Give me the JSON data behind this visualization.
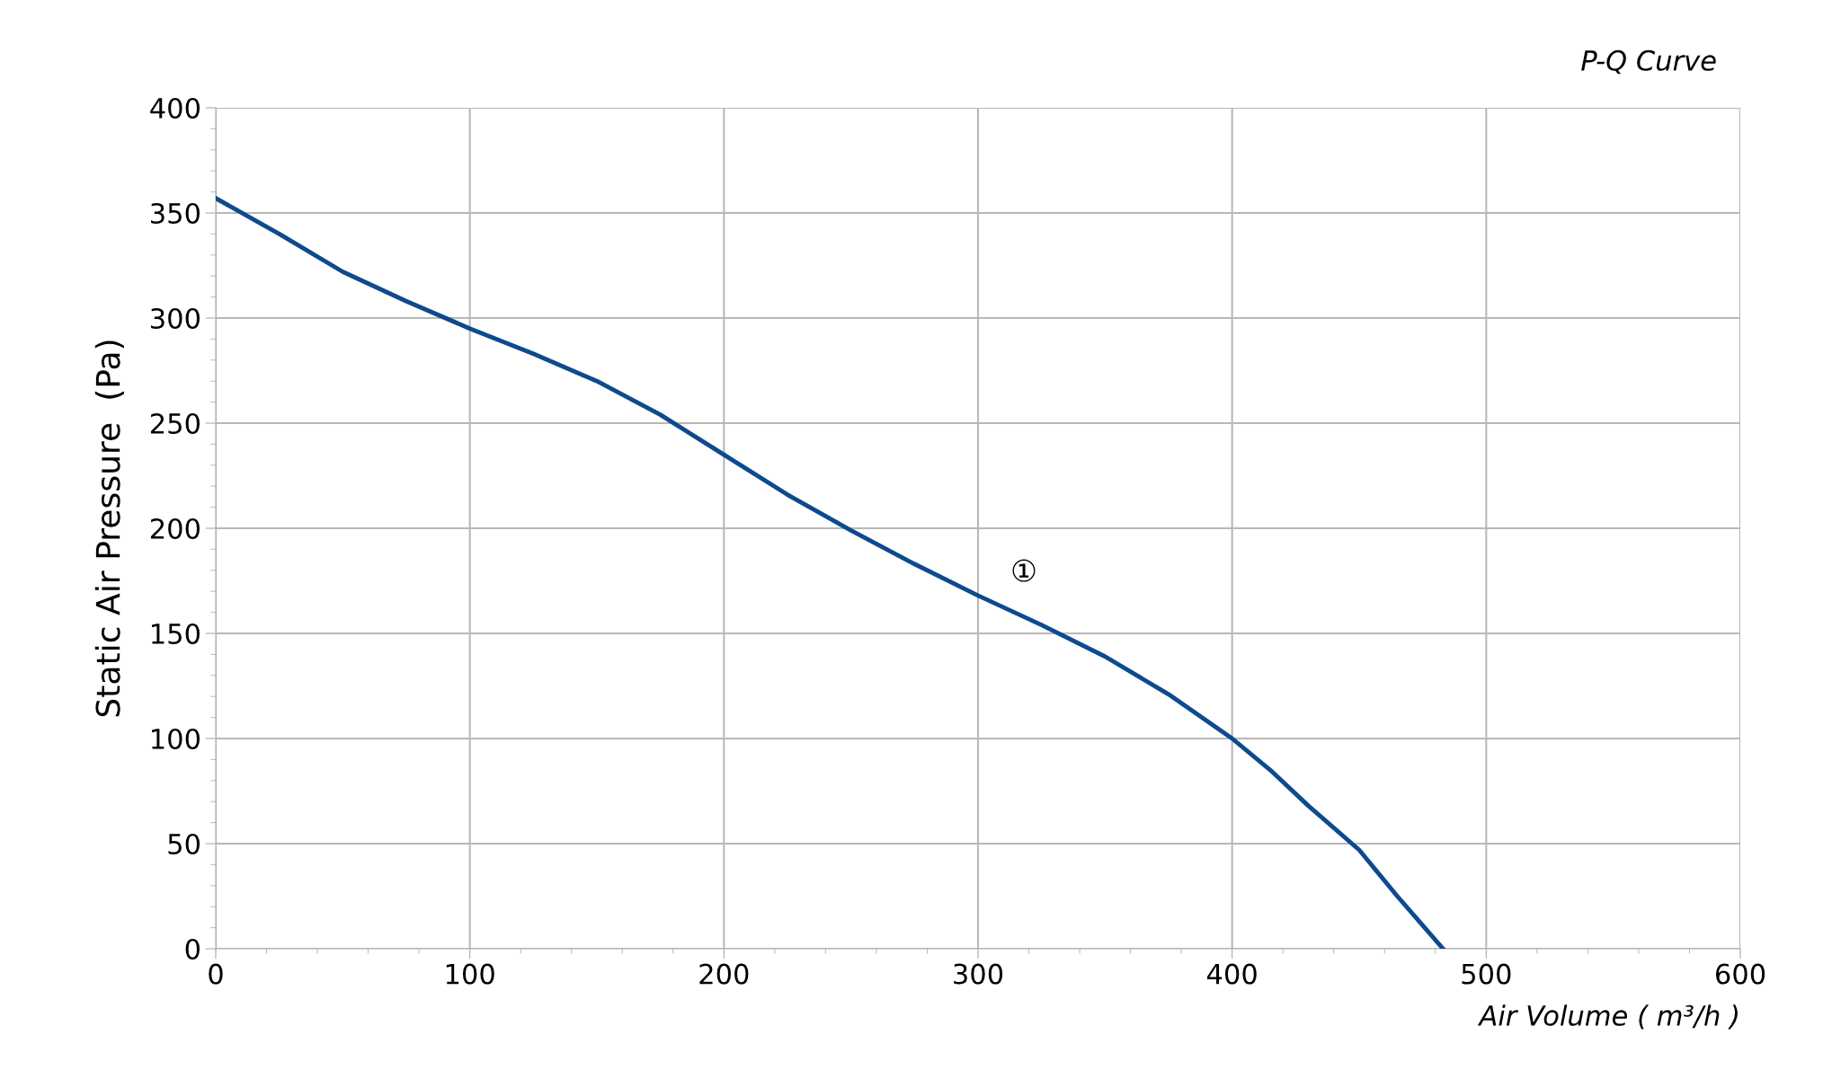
{
  "chart_data": {
    "type": "line",
    "title": "P-Q Curve",
    "xlabel": "Air Volume ( m³/h )",
    "ylabel": "Static Air Pressure  (Pa)",
    "series": [
      {
        "color": "#0d4a8e",
        "x": [
          0,
          25,
          50,
          75,
          100,
          125,
          150,
          175,
          200,
          225,
          250,
          275,
          300,
          325,
          350,
          375,
          400,
          415,
          430,
          450,
          465,
          483
        ],
        "values": [
          357,
          340,
          322,
          308,
          295,
          283,
          270,
          254,
          235,
          216,
          199,
          183,
          168,
          154,
          139,
          121,
          100,
          85,
          68,
          47,
          25,
          0
        ]
      }
    ],
    "xlim": [
      0,
      600
    ],
    "xticks": [
      0,
      100,
      200,
      300,
      400,
      500,
      600
    ],
    "ylim": [
      0,
      400
    ],
    "yticks": [
      0,
      50,
      100,
      150,
      200,
      250,
      300,
      350,
      400
    ],
    "grid": true,
    "marker": "none",
    "line_style": "solid",
    "annotations": [
      "①"
    ]
  }
}
